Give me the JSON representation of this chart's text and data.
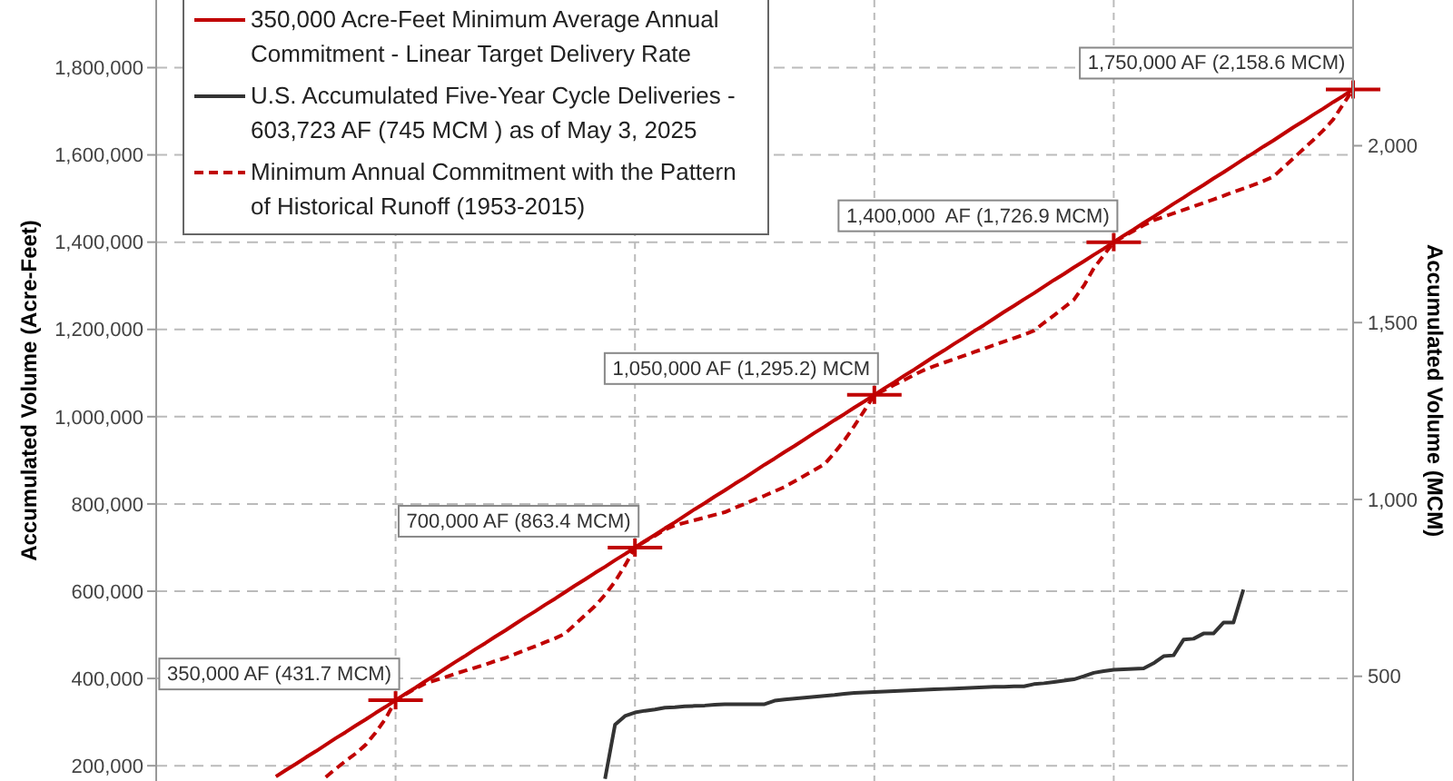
{
  "chart_data": {
    "type": "line",
    "ylabel": "Accumulated Volume (Acre-Feet)",
    "y2label": "Accumulated Volume (MCM)",
    "categories": [
      null,
      null,
      null,
      null,
      null,
      null,
      null,
      null,
      null,
      null,
      null,
      null,
      null,
      null,
      null,
      null,
      null,
      null,
      null,
      null,
      null,
      null,
      null,
      null,
      null,
      null,
      null,
      null,
      null,
      null,
      null,
      null,
      null,
      null,
      null,
      null,
      null,
      null,
      null,
      null,
      null,
      null,
      null,
      null,
      null,
      null,
      null,
      null,
      null,
      null,
      null,
      null,
      null,
      null,
      null,
      null,
      null,
      null,
      null,
      null,
      null,
      null,
      null,
      null,
      null,
      null,
      null,
      null,
      null,
      null,
      null,
      null,
      null,
      null,
      null,
      null,
      null,
      null,
      null,
      null,
      null,
      null,
      null,
      null,
      null,
      null,
      null,
      null,
      null,
      null,
      null,
      null,
      null,
      null,
      null,
      null,
      null,
      null,
      null,
      null,
      null,
      null,
      null,
      null,
      null,
      null,
      null,
      null,
      null,
      null,
      null,
      null,
      null,
      null,
      null,
      null,
      null,
      null,
      null,
      null,
      null
    ],
    "ylim": [
      165000,
      1955000
    ],
    "yticks": [
      {
        "value": 200000,
        "label": "200,000"
      },
      {
        "value": 400000,
        "label": "400,000"
      },
      {
        "value": 600000,
        "label": "600,000"
      },
      {
        "value": 800000,
        "label": "800,000"
      },
      {
        "value": 1000000,
        "label": "1,000,000"
      },
      {
        "value": 1200000,
        "label": "1,200,000"
      },
      {
        "value": 1400000,
        "label": "1,400,000"
      },
      {
        "value": 1600000,
        "label": "1,600,000"
      },
      {
        "value": 1800000,
        "label": "1,800,000"
      }
    ],
    "y2lim": [
      204,
      2412
    ],
    "y2ticks": [
      {
        "value": 500,
        "label": "500"
      },
      {
        "value": 1000,
        "label": "1,000"
      },
      {
        "value": 1500,
        "label": "1,500"
      },
      {
        "value": 2000,
        "label": "2,000"
      }
    ],
    "grid": true,
    "legend": "top left",
    "series": [
      {
        "name": "350,000 Acre-Feet Minimum Average Annual Commitment - Linear Target Delivery Rate",
        "color": "#c00000",
        "line_style": "solid",
        "values": [
          null,
          null,
          null,
          null,
          null,
          null,
          null,
          null,
          null,
          null,
          null,
          null,
          175000,
          190000,
          204000,
          219000,
          233000,
          248000,
          263000,
          277000,
          292000,
          306000,
          321000,
          335000,
          350000,
          365000,
          379000,
          394000,
          408000,
          423000,
          438000,
          452000,
          467000,
          481000,
          496000,
          510000,
          525000,
          540000,
          554000,
          569000,
          583000,
          598000,
          613000,
          627000,
          642000,
          656000,
          671000,
          685000,
          700000,
          715000,
          729000,
          744000,
          758000,
          773000,
          788000,
          802000,
          817000,
          831000,
          846000,
          860000,
          875000,
          890000,
          904000,
          919000,
          933000,
          948000,
          963000,
          977000,
          992000,
          1006000,
          1021000,
          1035000,
          1050000,
          1065000,
          1079000,
          1094000,
          1108000,
          1123000,
          1138000,
          1152000,
          1167000,
          1181000,
          1196000,
          1210000,
          1225000,
          1240000,
          1254000,
          1269000,
          1283000,
          1298000,
          1313000,
          1327000,
          1342000,
          1356000,
          1371000,
          1385000,
          1400000,
          1415000,
          1429000,
          1444000,
          1458000,
          1473000,
          1488000,
          1502000,
          1517000,
          1531000,
          1546000,
          1560000,
          1575000,
          1590000,
          1604000,
          1619000,
          1633000,
          1648000,
          1663000,
          1677000,
          1692000,
          1706000,
          1721000,
          1735000,
          1750000
        ]
      },
      {
        "name": "U.S. Accumulated Five-Year Cycle Deliveries - 603,723 AF (745 MCM ) as of May 3, 2025",
        "color": "#333333",
        "line_style": "solid",
        "values": [
          null,
          null,
          null,
          null,
          null,
          null,
          null,
          null,
          null,
          null,
          null,
          null,
          null,
          null,
          null,
          null,
          null,
          null,
          null,
          null,
          null,
          null,
          null,
          null,
          null,
          null,
          null,
          null,
          null,
          null,
          null,
          null,
          null,
          null,
          null,
          null,
          null,
          null,
          null,
          null,
          null,
          null,
          null,
          null,
          null,
          170000,
          294000,
          314000,
          322000,
          326000,
          329000,
          333000,
          334000,
          336000,
          337000,
          338000,
          340000,
          341000,
          341000,
          341000,
          341000,
          341000,
          349000,
          352000,
          354000,
          356000,
          358000,
          360000,
          362000,
          365000,
          367000,
          368000,
          369000,
          370000,
          371000,
          372000,
          373000,
          374000,
          375000,
          376000,
          377000,
          378000,
          379000,
          380000,
          381000,
          381000,
          382000,
          382000,
          387000,
          389000,
          392000,
          395000,
          398000,
          405000,
          413000,
          417000,
          420000,
          421000,
          422000,
          423000,
          435000,
          451000,
          453000,
          489000,
          491000,
          503000,
          503000,
          528000,
          528000,
          603723,
          null,
          null,
          null,
          null,
          null,
          null,
          null,
          null,
          null,
          null,
          null
        ]
      },
      {
        "name": "Minimum Annual Commitment with the Pattern of Historical Runoff (1953-2015)",
        "color": "#c00000",
        "line_style": "dashed",
        "values": [
          null,
          null,
          null,
          null,
          null,
          null,
          null,
          null,
          null,
          null,
          null,
          null,
          null,
          null,
          null,
          null,
          null,
          174000,
          193000,
          211000,
          228000,
          248000,
          276000,
          308000,
          350000,
          364000,
          377000,
          389000,
          396000,
          403000,
          411000,
          418000,
          425000,
          432000,
          440000,
          447000,
          456000,
          465000,
          474000,
          483000,
          492000,
          503000,
          524000,
          545000,
          566000,
          592000,
          622000,
          659000,
          700000,
          714000,
          727000,
          741000,
          751000,
          757000,
          763000,
          769000,
          775000,
          781000,
          791000,
          800000,
          810000,
          819000,
          829000,
          839000,
          852000,
          865000,
          878000,
          891000,
          917000,
          946000,
          979000,
          1014000,
          1050000,
          1061000,
          1073000,
          1084000,
          1096000,
          1107000,
          1116000,
          1124000,
          1132000,
          1140000,
          1148000,
          1156000,
          1164000,
          1172000,
          1180000,
          1188000,
          1197000,
          1215000,
          1232000,
          1250000,
          1268000,
          1300000,
          1340000,
          1370000,
          1400000,
          1413000,
          1426000,
          1439000,
          1450000,
          1458000,
          1466000,
          1474000,
          1482000,
          1490000,
          1498000,
          1506000,
          1515000,
          1523000,
          1531000,
          1540000,
          1550000,
          1571000,
          1592000,
          1613000,
          1634000,
          1656000,
          1681000,
          1716000,
          1750000
        ]
      }
    ],
    "annotations": [
      "350,000 AF (431.7 MCM)",
      "700,000 AF (863.4 MCM)",
      "1,050,000 AF (1,295.2) MCM",
      "1,400,000  AF (1,726.9 MCM)",
      "1,750,000 AF (2,158.6 MCM)"
    ]
  }
}
